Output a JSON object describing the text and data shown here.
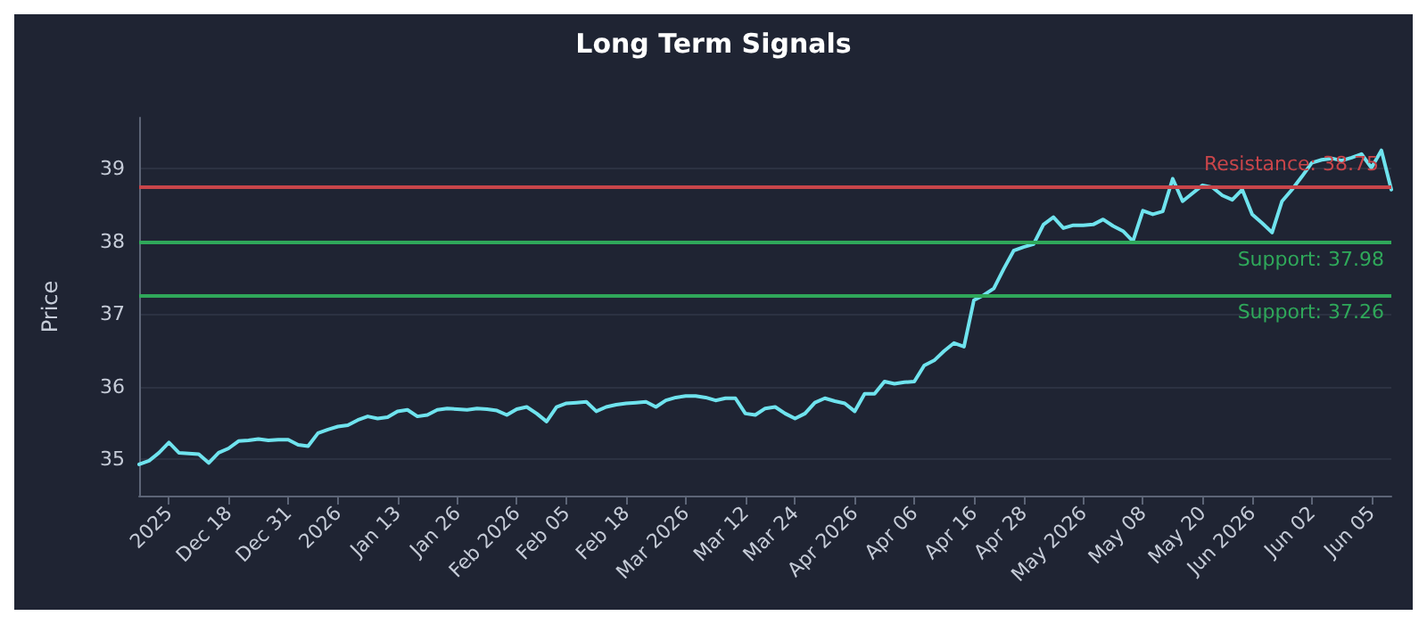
{
  "chart_data": {
    "type": "line",
    "title": "Long Term Signals",
    "ylabel": "Price",
    "categories": [
      null,
      null,
      null,
      "2025",
      null,
      null,
      null,
      null,
      null,
      "Dec 18",
      null,
      null,
      null,
      null,
      null,
      "Dec 31",
      null,
      null,
      null,
      null,
      "2026",
      null,
      null,
      null,
      null,
      null,
      "Jan 13",
      null,
      null,
      null,
      null,
      null,
      "Jan 26",
      null,
      null,
      null,
      null,
      null,
      "Feb 2026",
      null,
      null,
      null,
      null,
      "Feb 05",
      null,
      null,
      null,
      null,
      null,
      "Feb 18",
      null,
      null,
      null,
      null,
      null,
      "Mar 2026",
      null,
      null,
      null,
      null,
      null,
      "Mar 12",
      null,
      null,
      null,
      null,
      "Mar 24",
      null,
      null,
      null,
      null,
      null,
      "Apr 2026",
      null,
      null,
      null,
      null,
      null,
      "Apr 06",
      null,
      null,
      null,
      null,
      null,
      "Apr 16",
      null,
      null,
      null,
      null,
      "Apr 28",
      null,
      null,
      null,
      null,
      null,
      "May 2026",
      null,
      null,
      null,
      null,
      null,
      "May 08",
      null,
      null,
      null,
      null,
      null,
      "May 20",
      null,
      null,
      null,
      null,
      "Jun 2026",
      null,
      null,
      null,
      null,
      null,
      "Jun 02",
      null,
      null,
      null,
      null,
      null,
      "Jun 05",
      null,
      null
    ],
    "series": [
      {
        "color": "#6fe3ee",
        "values": [
          34.93,
          34.98,
          35.09,
          35.23,
          35.09,
          35.08,
          35.07,
          34.95,
          35.09,
          35.15,
          35.25,
          35.26,
          35.28,
          35.26,
          35.27,
          35.27,
          35.2,
          35.18,
          35.36,
          35.41,
          35.45,
          35.47,
          35.54,
          35.59,
          35.56,
          35.58,
          35.66,
          35.68,
          35.59,
          35.61,
          35.68,
          35.7,
          35.69,
          35.68,
          35.7,
          35.69,
          35.67,
          35.61,
          35.69,
          35.72,
          35.63,
          35.52,
          35.72,
          35.77,
          35.78,
          35.79,
          35.66,
          35.72,
          35.75,
          35.77,
          35.78,
          35.79,
          35.72,
          35.81,
          35.85,
          35.87,
          35.87,
          35.85,
          35.81,
          35.84,
          35.84,
          35.63,
          35.61,
          35.7,
          35.72,
          35.63,
          35.56,
          35.63,
          35.78,
          35.84,
          35.8,
          35.77,
          35.66,
          35.9,
          35.9,
          36.07,
          36.04,
          36.06,
          36.07,
          36.29,
          36.36,
          36.49,
          36.6,
          36.55,
          37.19,
          37.26,
          37.35,
          37.62,
          37.87,
          37.92,
          37.96,
          38.23,
          38.33,
          38.18,
          38.22,
          38.22,
          38.23,
          38.3,
          38.21,
          38.14,
          38.0,
          38.42,
          38.37,
          38.41,
          38.86,
          38.55,
          38.66,
          38.77,
          38.74,
          38.63,
          38.57,
          38.71,
          38.37,
          38.25,
          38.12,
          38.55,
          38.71,
          38.89,
          39.08,
          39.12,
          39.14,
          39.11,
          39.15,
          39.2,
          39.01,
          39.25,
          38.71
        ]
      }
    ],
    "ylim": [
      34.5,
      39.7
    ],
    "yticks": [
      35,
      36,
      37,
      38,
      39
    ],
    "grid": "y",
    "marker": "none",
    "line_style": "solid",
    "ref_lines": [
      {
        "axis": "y",
        "value": 38.75,
        "label": "Resistance: 38.75",
        "color": "#c9454a"
      },
      {
        "axis": "y",
        "value": 37.98,
        "label": "Support: 37.98",
        "color": "#2fa85a"
      },
      {
        "axis": "y",
        "value": 37.26,
        "label": "Support: 37.26",
        "color": "#2fa85a"
      }
    ]
  }
}
